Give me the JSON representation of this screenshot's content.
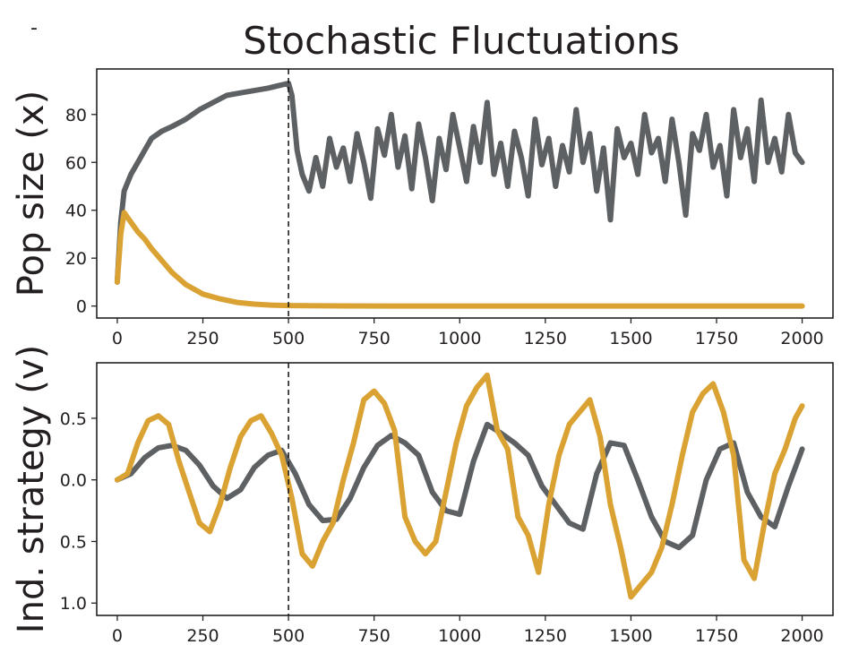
{
  "figure": {
    "title": "Stochastic Fluctuations",
    "corner_mark": "-"
  },
  "colors": {
    "series_gray": "#5e6163",
    "series_gold": "#d9a233",
    "axis": "#222222",
    "marker_line": "#111111"
  },
  "chart_data": [
    {
      "type": "line",
      "title": "Stochastic Fluctuations",
      "xlabel": "",
      "ylabel": "Pop size (x)",
      "xlim": [
        -60,
        2090
      ],
      "ylim": [
        -5,
        99
      ],
      "xticks": [
        0,
        250,
        500,
        750,
        1000,
        1250,
        1500,
        1750,
        2000
      ],
      "xtick_labels": [
        "0",
        "250",
        "500",
        "750",
        "1000",
        "1250",
        "1500",
        "1750",
        "2000"
      ],
      "yticks": [
        0,
        20,
        40,
        60,
        80
      ],
      "ytick_labels": [
        "0",
        "20",
        "40",
        "60",
        "80"
      ],
      "vline_x": 500,
      "grid": false,
      "series": [
        {
          "color": "#5e6163",
          "x": [
            0,
            10,
            20,
            40,
            60,
            80,
            100,
            130,
            160,
            200,
            240,
            280,
            320,
            360,
            400,
            440,
            470,
            500,
            510,
            525,
            540,
            560,
            580,
            600,
            620,
            640,
            660,
            680,
            700,
            720,
            740,
            760,
            780,
            800,
            820,
            840,
            860,
            880,
            900,
            920,
            940,
            960,
            980,
            1000,
            1020,
            1040,
            1060,
            1080,
            1100,
            1120,
            1140,
            1160,
            1180,
            1200,
            1220,
            1240,
            1260,
            1280,
            1300,
            1320,
            1340,
            1360,
            1380,
            1400,
            1420,
            1440,
            1460,
            1480,
            1500,
            1520,
            1540,
            1560,
            1580,
            1600,
            1620,
            1640,
            1660,
            1680,
            1700,
            1720,
            1740,
            1760,
            1780,
            1800,
            1820,
            1840,
            1860,
            1880,
            1900,
            1920,
            1940,
            1960,
            1980,
            2000
          ],
          "y": [
            10,
            35,
            48,
            55,
            60,
            65,
            70,
            73,
            75,
            78,
            82,
            85,
            88,
            89,
            90,
            91,
            92,
            93,
            88,
            65,
            55,
            48,
            62,
            50,
            70,
            58,
            66,
            52,
            72,
            60,
            45,
            74,
            63,
            80,
            58,
            71,
            49,
            76,
            62,
            44,
            70,
            57,
            80,
            66,
            52,
            75,
            60,
            85,
            55,
            68,
            50,
            73,
            62,
            46,
            78,
            59,
            70,
            50,
            67,
            56,
            82,
            60,
            72,
            48,
            66,
            36,
            74,
            62,
            68,
            55,
            80,
            64,
            70,
            52,
            78,
            60,
            38,
            72,
            65,
            80,
            58,
            67,
            46,
            82,
            62,
            74,
            52,
            86,
            60,
            70,
            56,
            80,
            64,
            60
          ]
        },
        {
          "color": "#d9a233",
          "x": [
            0,
            5,
            10,
            20,
            40,
            60,
            80,
            100,
            130,
            160,
            200,
            250,
            300,
            350,
            400,
            450,
            500,
            600,
            800,
            1000,
            1500,
            2000
          ],
          "y": [
            10,
            20,
            30,
            39,
            35,
            31,
            28,
            24,
            19,
            14,
            9,
            5,
            3,
            1.5,
            0.8,
            0.4,
            0.2,
            0.1,
            0,
            0,
            0,
            0
          ]
        }
      ]
    },
    {
      "type": "line",
      "title": "",
      "xlabel": "",
      "ylabel": "Ind. strategy (v)",
      "xlim": [
        -60,
        2090
      ],
      "ylim": [
        1.1,
        -0.95
      ],
      "xticks": [
        0,
        250,
        500,
        750,
        1000,
        1250,
        1500,
        1750,
        2000
      ],
      "xtick_labels": [
        "0",
        "250",
        "500",
        "750",
        "1000",
        "1250",
        "1500",
        "1750",
        "2000"
      ],
      "yticks": [
        -0.5,
        0.0,
        0.5,
        1.0
      ],
      "ytick_labels": [
        "0.5",
        "0.0",
        "0.5",
        "1.0"
      ],
      "vline_x": 500,
      "grid": false,
      "series": [
        {
          "color": "#5e6163",
          "x": [
            0,
            40,
            80,
            120,
            160,
            200,
            240,
            280,
            320,
            360,
            400,
            440,
            480,
            520,
            560,
            600,
            640,
            680,
            720,
            760,
            800,
            840,
            880,
            920,
            960,
            1000,
            1040,
            1080,
            1120,
            1160,
            1200,
            1240,
            1280,
            1320,
            1360,
            1400,
            1440,
            1480,
            1520,
            1560,
            1600,
            1640,
            1680,
            1720,
            1760,
            1800,
            1840,
            1880,
            1920,
            1960,
            2000
          ],
          "y": [
            0.0,
            -0.05,
            -0.18,
            -0.26,
            -0.28,
            -0.24,
            -0.12,
            0.05,
            0.15,
            0.08,
            -0.1,
            -0.2,
            -0.24,
            -0.05,
            0.2,
            0.33,
            0.32,
            0.15,
            -0.1,
            -0.28,
            -0.36,
            -0.3,
            -0.2,
            0.1,
            0.25,
            0.28,
            -0.15,
            -0.45,
            -0.38,
            -0.3,
            -0.2,
            0.05,
            0.2,
            0.35,
            0.4,
            -0.05,
            -0.3,
            -0.28,
            0.0,
            0.3,
            0.5,
            0.55,
            0.45,
            0.0,
            -0.25,
            -0.3,
            0.1,
            0.3,
            0.38,
            0.05,
            -0.25
          ]
        },
        {
          "color": "#d9a233",
          "x": [
            0,
            30,
            60,
            90,
            120,
            150,
            180,
            210,
            240,
            270,
            300,
            330,
            360,
            390,
            420,
            450,
            480,
            510,
            540,
            570,
            600,
            630,
            660,
            690,
            720,
            750,
            780,
            810,
            840,
            870,
            900,
            930,
            960,
            990,
            1020,
            1050,
            1080,
            1110,
            1140,
            1170,
            1200,
            1230,
            1260,
            1290,
            1320,
            1350,
            1380,
            1410,
            1440,
            1470,
            1500,
            1530,
            1560,
            1590,
            1620,
            1650,
            1680,
            1710,
            1740,
            1770,
            1800,
            1830,
            1860,
            1890,
            1920,
            1950,
            1980,
            2000
          ],
          "y": [
            0.0,
            -0.05,
            -0.3,
            -0.48,
            -0.52,
            -0.45,
            -0.15,
            0.1,
            0.35,
            0.42,
            0.2,
            -0.1,
            -0.35,
            -0.48,
            -0.52,
            -0.38,
            -0.2,
            0.15,
            0.6,
            0.7,
            0.5,
            0.35,
            0.0,
            -0.3,
            -0.65,
            -0.72,
            -0.62,
            -0.4,
            0.3,
            0.5,
            0.6,
            0.5,
            0.1,
            -0.3,
            -0.6,
            -0.75,
            -0.85,
            -0.4,
            -0.25,
            0.3,
            0.45,
            0.75,
            0.2,
            -0.2,
            -0.45,
            -0.55,
            -0.65,
            -0.35,
            0.2,
            0.55,
            0.95,
            0.85,
            0.75,
            0.55,
            0.2,
            -0.2,
            -0.55,
            -0.7,
            -0.78,
            -0.55,
            -0.2,
            0.65,
            0.8,
            0.35,
            -0.05,
            -0.25,
            -0.5,
            -0.6
          ]
        }
      ]
    }
  ]
}
